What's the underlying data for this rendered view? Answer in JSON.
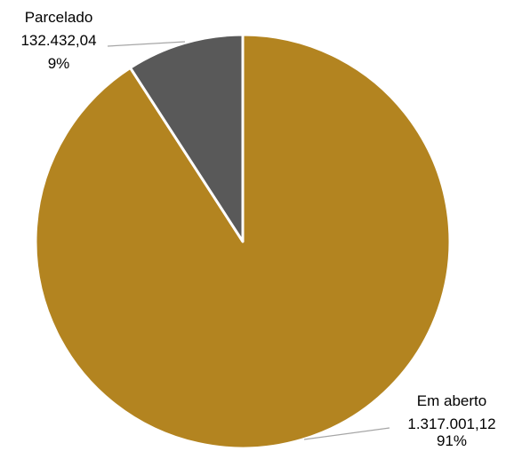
{
  "chart_data": {
    "type": "pie",
    "slices": [
      {
        "category": "Em aberto",
        "value": 1317001.12,
        "value_label": "1.317.001,12",
        "percent_label": "91%",
        "color": "#B38420"
      },
      {
        "category": "Parcelado",
        "value": 132432.04,
        "value_label": "132.432,04",
        "percent_label": "9%",
        "color": "#595959"
      }
    ],
    "slice_border_color": "#FFFFFF",
    "leader_line_color": "#A6A6A6",
    "start_angle_deg": 0,
    "direction": "clockwise",
    "legend": "none"
  }
}
